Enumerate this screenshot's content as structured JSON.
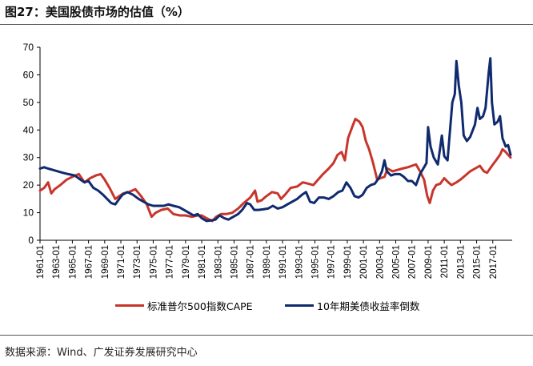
{
  "figure": {
    "title": "图27：美国股债市场的估值（%）",
    "source": "数据来源：Wind、广发证券发展研究中心"
  },
  "chart_data": {
    "type": "line",
    "ylim": [
      0,
      70
    ],
    "yticks": [
      "0",
      "10",
      "20",
      "30",
      "40",
      "50",
      "60",
      "70"
    ],
    "xlim": [
      1961.0,
      2019.4
    ],
    "xtick_labels": [
      "1961-01",
      "1963-01",
      "1965-01",
      "1967-01",
      "1969-01",
      "1971-01",
      "1973-01",
      "1975-01",
      "1977-01",
      "1979-01",
      "1981-01",
      "1983-01",
      "1985-01",
      "1987-01",
      "1989-01",
      "1991-01",
      "1993-01",
      "1995-01",
      "1997-01",
      "1999-01",
      "2001-01",
      "2003-01",
      "2005-01",
      "2007-01",
      "2009-01",
      "2011-01",
      "2013-01",
      "2015-01",
      "2017-01"
    ],
    "legend_position": "bottom",
    "grid": false,
    "series": [
      {
        "name": "标准普尔500指数CAPE",
        "color": "#C8352B",
        "points": [
          [
            1961.0,
            18
          ],
          [
            1961.5,
            19
          ],
          [
            1962.0,
            21
          ],
          [
            1962.4,
            17
          ],
          [
            1962.8,
            18.5
          ],
          [
            1963.5,
            20
          ],
          [
            1964.3,
            22
          ],
          [
            1965.0,
            23
          ],
          [
            1965.8,
            24
          ],
          [
            1966.5,
            21
          ],
          [
            1967.2,
            22.5
          ],
          [
            1967.9,
            23.5
          ],
          [
            1968.5,
            24
          ],
          [
            1969.0,
            22
          ],
          [
            1969.6,
            19
          ],
          [
            1970.3,
            15
          ],
          [
            1970.8,
            16
          ],
          [
            1971.3,
            17
          ],
          [
            1972.0,
            17.5
          ],
          [
            1972.8,
            18.5
          ],
          [
            1973.5,
            16
          ],
          [
            1974.2,
            13
          ],
          [
            1974.8,
            8.5
          ],
          [
            1975.3,
            10
          ],
          [
            1976.0,
            11
          ],
          [
            1976.8,
            11.5
          ],
          [
            1977.5,
            9.5
          ],
          [
            1978.3,
            9
          ],
          [
            1979.0,
            9
          ],
          [
            1979.8,
            8.5
          ],
          [
            1980.5,
            9
          ],
          [
            1981.0,
            9
          ],
          [
            1981.6,
            8
          ],
          [
            1982.3,
            7
          ],
          [
            1982.8,
            8.5
          ],
          [
            1983.4,
            9.5
          ],
          [
            1984.0,
            9.5
          ],
          [
            1984.8,
            10
          ],
          [
            1985.5,
            11.5
          ],
          [
            1986.2,
            13.5
          ],
          [
            1987.0,
            15.5
          ],
          [
            1987.6,
            18
          ],
          [
            1987.9,
            14
          ],
          [
            1988.4,
            14.5
          ],
          [
            1989.0,
            16
          ],
          [
            1989.7,
            17.5
          ],
          [
            1990.4,
            17
          ],
          [
            1990.8,
            15
          ],
          [
            1991.3,
            16.5
          ],
          [
            1992.0,
            19
          ],
          [
            1992.8,
            19.5
          ],
          [
            1993.5,
            21
          ],
          [
            1994.2,
            20.5
          ],
          [
            1994.8,
            20
          ],
          [
            1995.4,
            22
          ],
          [
            1996.0,
            24
          ],
          [
            1996.7,
            26
          ],
          [
            1997.3,
            28
          ],
          [
            1997.8,
            31
          ],
          [
            1998.3,
            32
          ],
          [
            1998.7,
            29
          ],
          [
            1999.1,
            37
          ],
          [
            1999.6,
            41
          ],
          [
            2000.0,
            44
          ],
          [
            2000.5,
            43
          ],
          [
            2000.9,
            41
          ],
          [
            2001.3,
            36
          ],
          [
            2001.7,
            33
          ],
          [
            2002.2,
            28
          ],
          [
            2002.7,
            22
          ],
          [
            2003.1,
            22.5
          ],
          [
            2003.6,
            23
          ],
          [
            2004.0,
            26
          ],
          [
            2004.6,
            25
          ],
          [
            2005.2,
            25.5
          ],
          [
            2005.8,
            26
          ],
          [
            2006.5,
            26.5
          ],
          [
            2007.0,
            27
          ],
          [
            2007.5,
            27.5
          ],
          [
            2008.0,
            25
          ],
          [
            2008.5,
            22
          ],
          [
            2008.9,
            16
          ],
          [
            2009.2,
            13.5
          ],
          [
            2009.6,
            18
          ],
          [
            2010.0,
            20
          ],
          [
            2010.5,
            20.5
          ],
          [
            2011.0,
            22.5
          ],
          [
            2011.5,
            21
          ],
          [
            2011.9,
            20
          ],
          [
            2012.5,
            21
          ],
          [
            2013.0,
            22
          ],
          [
            2013.6,
            23.5
          ],
          [
            2014.2,
            25
          ],
          [
            2014.8,
            26
          ],
          [
            2015.4,
            27
          ],
          [
            2015.9,
            25
          ],
          [
            2016.3,
            24.5
          ],
          [
            2016.9,
            27
          ],
          [
            2017.4,
            29
          ],
          [
            2017.9,
            31
          ],
          [
            2018.2,
            33
          ],
          [
            2018.6,
            32
          ],
          [
            2018.9,
            31
          ],
          [
            2019.2,
            30
          ]
        ]
      },
      {
        "name": "10年期美债收益率倒数",
        "color": "#102A6E",
        "points": [
          [
            1961.0,
            26
          ],
          [
            1961.5,
            26.5
          ],
          [
            1962.0,
            26
          ],
          [
            1962.6,
            25.5
          ],
          [
            1963.2,
            25
          ],
          [
            1963.8,
            24.5
          ],
          [
            1964.5,
            24
          ],
          [
            1965.3,
            23.5
          ],
          [
            1966.0,
            22
          ],
          [
            1966.5,
            21
          ],
          [
            1967.0,
            21.5
          ],
          [
            1967.6,
            19
          ],
          [
            1968.2,
            18
          ],
          [
            1968.8,
            16.5
          ],
          [
            1969.3,
            15
          ],
          [
            1969.8,
            13.5
          ],
          [
            1970.3,
            13
          ],
          [
            1970.8,
            15
          ],
          [
            1971.2,
            16.5
          ],
          [
            1971.8,
            17.5
          ],
          [
            1972.5,
            16.5
          ],
          [
            1973.2,
            15
          ],
          [
            1973.8,
            14
          ],
          [
            1974.4,
            13
          ],
          [
            1975.0,
            12.5
          ],
          [
            1975.6,
            12.5
          ],
          [
            1976.3,
            12.5
          ],
          [
            1976.9,
            13
          ],
          [
            1977.5,
            12.5
          ],
          [
            1978.2,
            12
          ],
          [
            1978.8,
            11
          ],
          [
            1979.4,
            10
          ],
          [
            1980.0,
            9
          ],
          [
            1980.5,
            9.5
          ],
          [
            1981.0,
            8
          ],
          [
            1981.6,
            7
          ],
          [
            1982.2,
            7.2
          ],
          [
            1982.7,
            7.5
          ],
          [
            1983.2,
            9
          ],
          [
            1983.8,
            8
          ],
          [
            1984.3,
            7.5
          ],
          [
            1984.9,
            8.5
          ],
          [
            1985.5,
            9.5
          ],
          [
            1986.0,
            11
          ],
          [
            1986.6,
            13.5
          ],
          [
            1987.0,
            13
          ],
          [
            1987.5,
            11
          ],
          [
            1988.0,
            11
          ],
          [
            1988.6,
            11.2
          ],
          [
            1989.2,
            11.5
          ],
          [
            1989.8,
            12.5
          ],
          [
            1990.4,
            11.5
          ],
          [
            1991.0,
            12
          ],
          [
            1991.6,
            13
          ],
          [
            1992.2,
            14
          ],
          [
            1992.8,
            15
          ],
          [
            1993.4,
            16.5
          ],
          [
            1993.9,
            17.5
          ],
          [
            1994.4,
            14
          ],
          [
            1994.9,
            13.5
          ],
          [
            1995.5,
            15.5
          ],
          [
            1996.1,
            15.5
          ],
          [
            1996.7,
            15
          ],
          [
            1997.3,
            16
          ],
          [
            1997.9,
            17.5
          ],
          [
            1998.4,
            18
          ],
          [
            1998.9,
            21
          ],
          [
            1999.4,
            19
          ],
          [
            1999.9,
            16
          ],
          [
            2000.4,
            15.5
          ],
          [
            2000.9,
            16.5
          ],
          [
            2001.4,
            19
          ],
          [
            2001.9,
            20
          ],
          [
            2002.4,
            20.5
          ],
          [
            2002.9,
            22.5
          ],
          [
            2003.3,
            25
          ],
          [
            2003.6,
            29
          ],
          [
            2003.9,
            25
          ],
          [
            2004.4,
            23.5
          ],
          [
            2004.9,
            24
          ],
          [
            2005.5,
            24
          ],
          [
            2006.0,
            23
          ],
          [
            2006.5,
            21.5
          ],
          [
            2007.0,
            21.5
          ],
          [
            2007.5,
            20
          ],
          [
            2008.0,
            24
          ],
          [
            2008.4,
            26
          ],
          [
            2008.8,
            28
          ],
          [
            2009.0,
            41
          ],
          [
            2009.3,
            34
          ],
          [
            2009.7,
            30
          ],
          [
            2010.2,
            27.5
          ],
          [
            2010.7,
            38
          ],
          [
            2011.0,
            30.5
          ],
          [
            2011.4,
            29
          ],
          [
            2011.8,
            43
          ],
          [
            2012.0,
            50
          ],
          [
            2012.3,
            53
          ],
          [
            2012.5,
            65
          ],
          [
            2012.8,
            56
          ],
          [
            2013.1,
            50
          ],
          [
            2013.4,
            38
          ],
          [
            2013.8,
            36
          ],
          [
            2014.2,
            37.5
          ],
          [
            2014.8,
            42
          ],
          [
            2015.1,
            48
          ],
          [
            2015.4,
            44
          ],
          [
            2015.8,
            45
          ],
          [
            2016.1,
            48
          ],
          [
            2016.5,
            61
          ],
          [
            2016.7,
            66
          ],
          [
            2016.9,
            50
          ],
          [
            2017.2,
            42
          ],
          [
            2017.6,
            43
          ],
          [
            2017.9,
            45
          ],
          [
            2018.2,
            37
          ],
          [
            2018.6,
            34
          ],
          [
            2018.9,
            34.5
          ],
          [
            2019.2,
            31
          ]
        ]
      }
    ]
  }
}
